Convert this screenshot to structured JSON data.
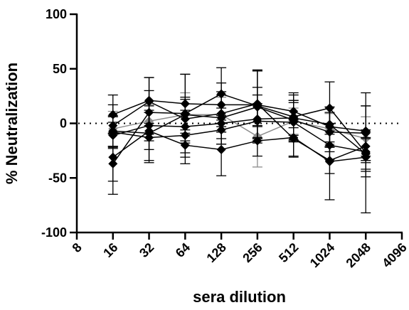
{
  "chart_data": {
    "type": "line",
    "title": "",
    "xlabel": "sera dilution",
    "ylabel": "% Neutralization",
    "x_scale": "log2",
    "xlim": [
      8,
      4096
    ],
    "ylim": [
      -100,
      100
    ],
    "x_ticks": [
      8,
      16,
      32,
      64,
      128,
      256,
      512,
      1024,
      2048,
      4096
    ],
    "x_tick_labels": [
      "8",
      "16",
      "32",
      "64",
      "128",
      "256",
      "512",
      "1024",
      "2048",
      "4096"
    ],
    "y_ticks": [
      -100,
      -50,
      0,
      50,
      100
    ],
    "y_tick_labels": [
      "-100",
      "-50",
      "0",
      "50",
      "100"
    ],
    "reference_line": {
      "y": 0,
      "style": "dotted"
    },
    "grid": false,
    "legend": "none",
    "marker": "diamond",
    "colors": {
      "primary": "#000000",
      "secondary": "#8c8c8c"
    },
    "x": [
      16,
      32,
      64,
      128,
      256,
      512,
      1024,
      2048
    ],
    "series": [
      {
        "color": "#000000",
        "values": [
          8,
          21,
          18,
          17,
          17,
          11,
          -3,
          -7
        ],
        "errors": [
          18,
          21,
          27,
          20,
          31,
          15,
          18,
          23
        ]
      },
      {
        "color": "#000000",
        "values": [
          -37,
          10,
          9,
          27,
          16,
          6,
          14,
          -27
        ],
        "errors": [
          28,
          20,
          36,
          24,
          32,
          22,
          24,
          55
        ]
      },
      {
        "color": "#000000",
        "values": [
          -31,
          -7,
          -20,
          -24,
          -16,
          -13,
          -35,
          -31
        ],
        "errors": [
          22,
          17,
          17,
          24,
          14,
          17,
          35,
          18
        ]
      },
      {
        "color": "#000000",
        "values": [
          -8,
          -13,
          -11,
          -6,
          2,
          1,
          -20,
          -26
        ],
        "errors": [
          14,
          23,
          20,
          13,
          16,
          18,
          13,
          18
        ]
      },
      {
        "color": "#000000",
        "values": [
          -2,
          20,
          4,
          9,
          18,
          -14,
          -34,
          -21
        ],
        "errors": [
          19,
          22,
          20,
          17,
          31,
          17,
          12,
          15
        ]
      },
      {
        "color": "#000000",
        "values": [
          -11,
          -2,
          -3,
          0,
          4,
          5,
          -1,
          -28
        ],
        "errors": [
          12,
          14,
          15,
          14,
          22,
          16,
          16,
          14
        ]
      },
      {
        "color": "#000000",
        "values": [
          -7,
          -9,
          8,
          5,
          15,
          3,
          -8,
          -9
        ],
        "errors": [
          14,
          25,
          14,
          24,
          18,
          18,
          18,
          25
        ]
      },
      {
        "color": "#8c8c8c",
        "values": [
          -5,
          2,
          8,
          8,
          -12,
          2,
          -5,
          -14
        ],
        "errors": [
          16,
          15,
          20,
          16,
          28,
          12,
          14,
          20
        ]
      }
    ]
  }
}
